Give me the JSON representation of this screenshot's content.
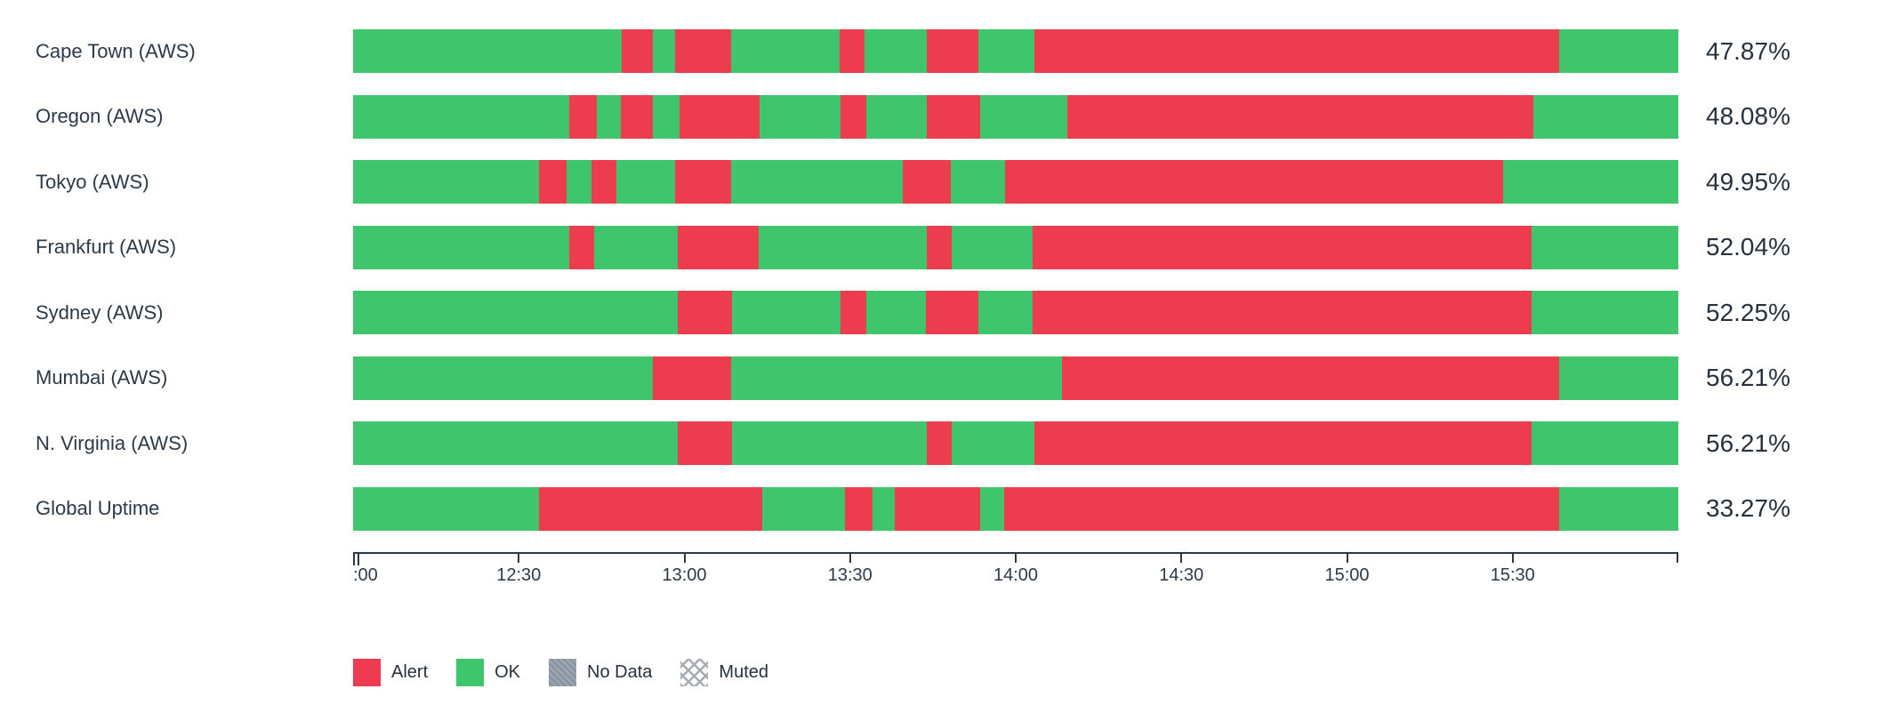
{
  "colors": {
    "ok": "#3fc56b",
    "alert": "#ed3b50",
    "no_data": "#8b95a2",
    "text": "#2c3a47"
  },
  "chart_data": {
    "type": "status-timeline-bar",
    "title": "",
    "x_axis": {
      "start_time": "12:00",
      "end_time": "16:00",
      "ticks": [
        {
          "label": ":00",
          "pos_pct": 0
        },
        {
          "label": "12:30",
          "pos_pct": 12.5
        },
        {
          "label": "13:00",
          "pos_pct": 25
        },
        {
          "label": "13:30",
          "pos_pct": 37.5
        },
        {
          "label": "14:00",
          "pos_pct": 50
        },
        {
          "label": "14:30",
          "pos_pct": 62.5
        },
        {
          "label": "15:00",
          "pos_pct": 75
        },
        {
          "label": "15:30",
          "pos_pct": 87.5
        },
        {
          "label": "",
          "pos_pct": 100
        }
      ]
    },
    "rows": [
      {
        "label": "Cape Town (AWS)",
        "uptime": "47.87%",
        "segments": [
          {
            "status": "ok",
            "width_pct": 20.3
          },
          {
            "status": "alert",
            "width_pct": 2.3
          },
          {
            "status": "ok",
            "width_pct": 1.7
          },
          {
            "status": "alert",
            "width_pct": 4.2
          },
          {
            "status": "ok",
            "width_pct": 8.2
          },
          {
            "status": "alert",
            "width_pct": 1.9
          },
          {
            "status": "ok",
            "width_pct": 4.7
          },
          {
            "status": "alert",
            "width_pct": 3.9
          },
          {
            "status": "ok",
            "width_pct": 4.2
          },
          {
            "status": "alert",
            "width_pct": 39.6
          },
          {
            "status": "ok",
            "width_pct": 9.0
          }
        ]
      },
      {
        "label": "Oregon (AWS)",
        "uptime": "48.08%",
        "segments": [
          {
            "status": "ok",
            "width_pct": 16.3
          },
          {
            "status": "alert",
            "width_pct": 2.1
          },
          {
            "status": "ok",
            "width_pct": 1.8
          },
          {
            "status": "alert",
            "width_pct": 2.4
          },
          {
            "status": "ok",
            "width_pct": 2.0
          },
          {
            "status": "alert",
            "width_pct": 6.1
          },
          {
            "status": "ok",
            "width_pct": 6.1
          },
          {
            "status": "alert",
            "width_pct": 1.9
          },
          {
            "status": "ok",
            "width_pct": 4.6
          },
          {
            "status": "alert",
            "width_pct": 4.0
          },
          {
            "status": "ok",
            "width_pct": 6.6
          },
          {
            "status": "alert",
            "width_pct": 35.2
          },
          {
            "status": "ok",
            "width_pct": 10.9
          }
        ]
      },
      {
        "label": "Tokyo (AWS)",
        "uptime": "49.95%",
        "segments": [
          {
            "status": "ok",
            "width_pct": 14.0
          },
          {
            "status": "alert",
            "width_pct": 2.1
          },
          {
            "status": "ok",
            "width_pct": 1.9
          },
          {
            "status": "alert",
            "width_pct": 1.9
          },
          {
            "status": "ok",
            "width_pct": 4.4
          },
          {
            "status": "alert",
            "width_pct": 4.2
          },
          {
            "status": "ok",
            "width_pct": 13.0
          },
          {
            "status": "alert",
            "width_pct": 3.6
          },
          {
            "status": "ok",
            "width_pct": 4.1
          },
          {
            "status": "alert",
            "width_pct": 37.6
          },
          {
            "status": "ok",
            "width_pct": 13.2
          }
        ]
      },
      {
        "label": "Frankfurt (AWS)",
        "uptime": "52.04%",
        "segments": [
          {
            "status": "ok",
            "width_pct": 16.3
          },
          {
            "status": "alert",
            "width_pct": 1.9
          },
          {
            "status": "ok",
            "width_pct": 6.3
          },
          {
            "status": "alert",
            "width_pct": 6.1
          },
          {
            "status": "ok",
            "width_pct": 12.7
          },
          {
            "status": "alert",
            "width_pct": 1.9
          },
          {
            "status": "ok",
            "width_pct": 6.1
          },
          {
            "status": "alert",
            "width_pct": 37.6
          },
          {
            "status": "ok",
            "width_pct": 11.1
          }
        ]
      },
      {
        "label": "Sydney (AWS)",
        "uptime": "52.25%",
        "segments": [
          {
            "status": "ok",
            "width_pct": 24.5
          },
          {
            "status": "alert",
            "width_pct": 4.1
          },
          {
            "status": "ok",
            "width_pct": 8.2
          },
          {
            "status": "alert",
            "width_pct": 1.9
          },
          {
            "status": "ok",
            "width_pct": 4.5
          },
          {
            "status": "alert",
            "width_pct": 4.0
          },
          {
            "status": "ok",
            "width_pct": 4.1
          },
          {
            "status": "alert",
            "width_pct": 37.6
          },
          {
            "status": "ok",
            "width_pct": 11.1
          }
        ]
      },
      {
        "label": "Mumbai (AWS)",
        "uptime": "56.21%",
        "segments": [
          {
            "status": "ok",
            "width_pct": 22.6
          },
          {
            "status": "alert",
            "width_pct": 5.9
          },
          {
            "status": "ok",
            "width_pct": 25.0
          },
          {
            "status": "alert",
            "width_pct": 37.5
          },
          {
            "status": "ok",
            "width_pct": 9.0
          }
        ]
      },
      {
        "label": "N. Virginia (AWS)",
        "uptime": "56.21%",
        "segments": [
          {
            "status": "ok",
            "width_pct": 24.5
          },
          {
            "status": "alert",
            "width_pct": 4.1
          },
          {
            "status": "ok",
            "width_pct": 14.7
          },
          {
            "status": "alert",
            "width_pct": 1.9
          },
          {
            "status": "ok",
            "width_pct": 6.2
          },
          {
            "status": "alert",
            "width_pct": 37.5
          },
          {
            "status": "ok",
            "width_pct": 11.1
          }
        ]
      },
      {
        "label": "Global Uptime",
        "uptime": "33.27%",
        "segments": [
          {
            "status": "ok",
            "width_pct": 14.0
          },
          {
            "status": "alert",
            "width_pct": 16.9
          },
          {
            "status": "ok",
            "width_pct": 6.2
          },
          {
            "status": "alert",
            "width_pct": 2.1
          },
          {
            "status": "ok",
            "width_pct": 1.7
          },
          {
            "status": "alert",
            "width_pct": 6.4
          },
          {
            "status": "ok",
            "width_pct": 1.8
          },
          {
            "status": "alert",
            "width_pct": 41.9
          },
          {
            "status": "ok",
            "width_pct": 9.0
          }
        ]
      }
    ],
    "legend": [
      {
        "status": "alert",
        "label": "Alert"
      },
      {
        "status": "ok",
        "label": "OK"
      },
      {
        "status": "no_data",
        "label": "No Data"
      },
      {
        "status": "muted",
        "label": "Muted"
      }
    ]
  }
}
